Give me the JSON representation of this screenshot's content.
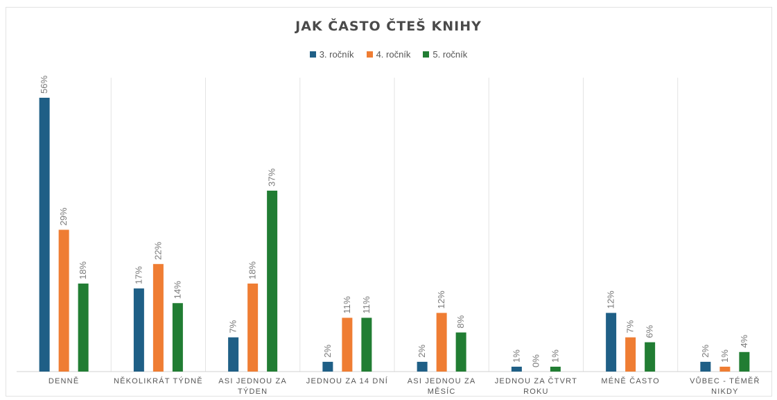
{
  "chart_data": {
    "type": "bar",
    "title": "JAK ČASTO ČTEŠ KNIHY",
    "categories": [
      [
        "DENNĚ"
      ],
      [
        "NĚKOLIKRÁT TÝDNĚ"
      ],
      [
        "ASI JEDNOU ZA",
        "TÝDEN"
      ],
      [
        "JEDNOU ZA 14 DNÍ"
      ],
      [
        "ASI JEDNOU ZA",
        "MĚSÍC"
      ],
      [
        "JEDNOU ZA ČTVRT",
        "ROKU"
      ],
      [
        "MÉNĚ ČASTO"
      ],
      [
        "VŮBEC - TÉMĚŘ",
        "NIKDY"
      ]
    ],
    "series": [
      {
        "name": "3. ročník",
        "color": "#1f5f86",
        "values": [
          56,
          17,
          7,
          2,
          2,
          1,
          12,
          2
        ]
      },
      {
        "name": "4. ročník",
        "color": "#ef7d33",
        "values": [
          29,
          22,
          18,
          11,
          12,
          0,
          7,
          1
        ]
      },
      {
        "name": "5. ročník",
        "color": "#217d33",
        "values": [
          18,
          14,
          37,
          11,
          8,
          1,
          6,
          4
        ]
      }
    ],
    "value_suffix": "%",
    "ylim": [
      0,
      56
    ],
    "legend_position": "top",
    "grid": "vertical category separators",
    "data_labels": "rotated above bars"
  }
}
